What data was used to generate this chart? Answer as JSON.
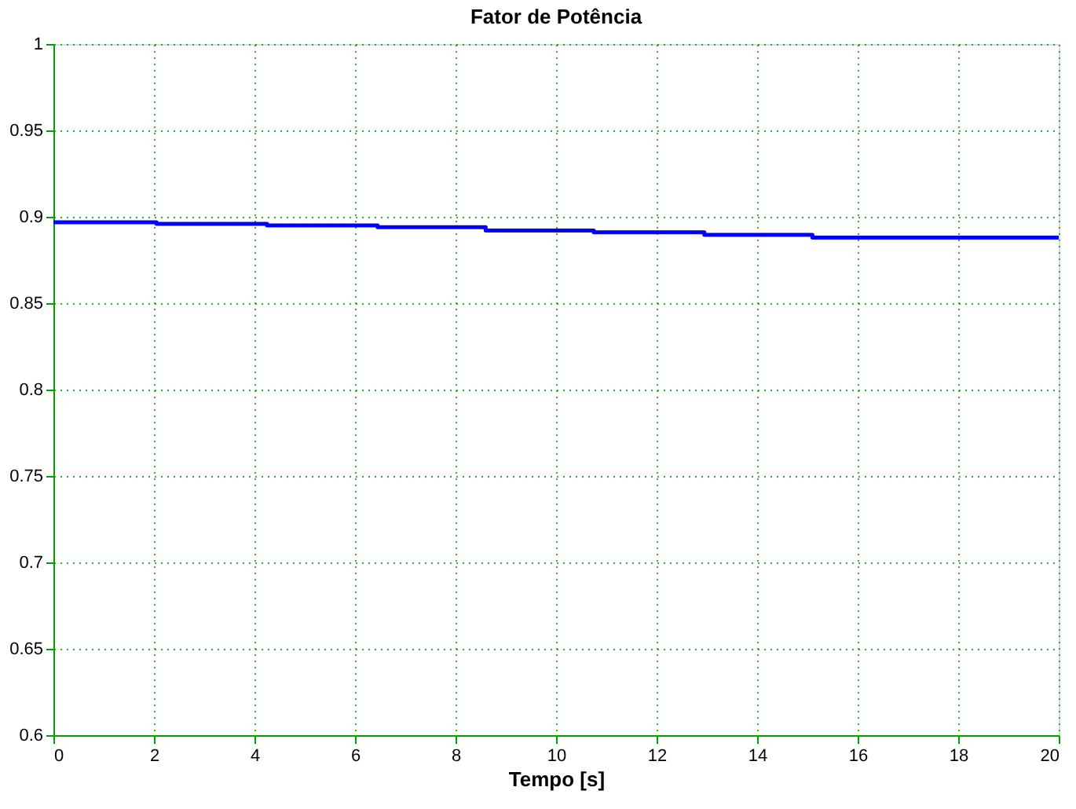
{
  "chart_data": {
    "type": "step",
    "title": "Fator de Potência",
    "xlabel": "Tempo [s]",
    "x": [
      0,
      2.05,
      4.25,
      6.45,
      8.6,
      10.75,
      12.95,
      15.1,
      20
    ],
    "series": [
      {
        "color": "#0000ff",
        "values": [
          0.8968,
          0.8959,
          0.895,
          0.894,
          0.892,
          0.891,
          0.8895,
          0.888,
          0.888
        ]
      }
    ],
    "xlim": [
      0,
      20
    ],
    "xticks": [
      0,
      2,
      4,
      6,
      8,
      10,
      12,
      14,
      16,
      18,
      20
    ],
    "ylim": [
      0.6,
      1
    ],
    "yticks": [
      0.6,
      0.65,
      0.7,
      0.75,
      0.8,
      0.85,
      0.9,
      0.95,
      1
    ],
    "grid": true,
    "line_style": "solid",
    "marker": "none",
    "legend": false
  }
}
